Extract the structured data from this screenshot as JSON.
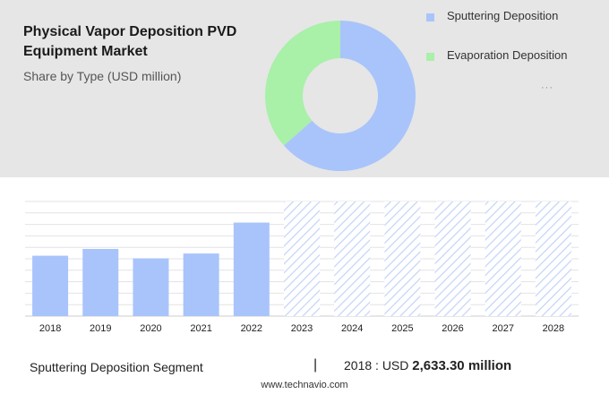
{
  "header": {
    "title": "Physical Vapor Deposition PVD Equipment Market",
    "subtitle": "Share by Type (USD million)"
  },
  "legend": {
    "items": [
      {
        "label": "Sputtering Deposition",
        "color": "#a9c4fb"
      },
      {
        "label": "Evaporation Deposition",
        "color": "#a9f0a9"
      }
    ],
    "more_icon": "ellipsis-icon"
  },
  "chart_data": [
    {
      "type": "pie",
      "variant": "donut",
      "categories": [
        "Sputtering Deposition",
        "Evaporation Deposition"
      ],
      "values": [
        63.5,
        36.5
      ],
      "colors": [
        "#a9c4fb",
        "#a9f0a9"
      ]
    },
    {
      "type": "bar",
      "categories": [
        "2018",
        "2019",
        "2020",
        "2021",
        "2022",
        "2023",
        "2024",
        "2025",
        "2026",
        "2027",
        "2028"
      ],
      "values": [
        2633.3,
        2930,
        2520,
        2730,
        4080,
        null,
        null,
        null,
        null,
        null,
        null
      ],
      "forecast_categories": [
        "2023",
        "2024",
        "2025",
        "2026",
        "2027",
        "2028"
      ],
      "ylim": [
        0,
        5000
      ],
      "grid": true,
      "colors": {
        "bar": "#a9c4fb",
        "forecast_hatch": "#c3d3f7"
      }
    }
  ],
  "footer": {
    "segment_label": "Sputtering Deposition Segment",
    "separator": "|",
    "year_value_prefix": "2018 : USD ",
    "value": "2,633.30 million",
    "source": "www.technavio.com"
  }
}
